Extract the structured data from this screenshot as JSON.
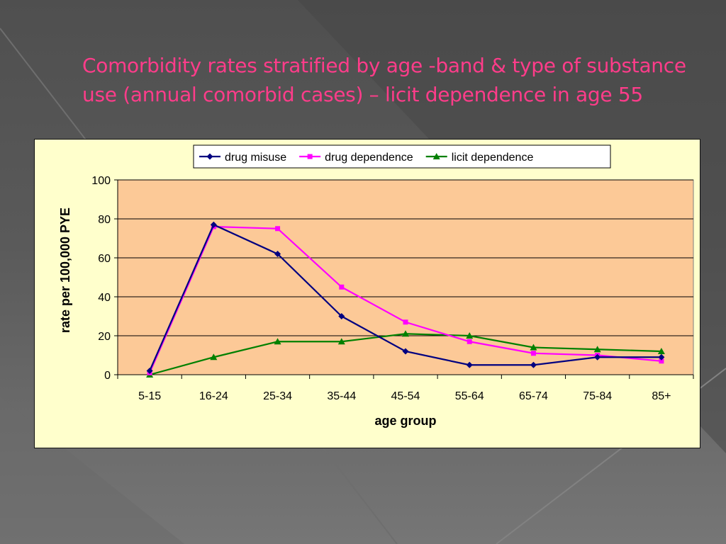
{
  "slide": {
    "title": "Comorbidity rates stratified by age -band & type of substance use (annual comorbid cases) – licit dependence in age 55"
  },
  "colors": {
    "background": "#5a5a5a",
    "title": "#ff3c8a",
    "chart_area": "#ffffcc",
    "plot_area": "#fcc997"
  },
  "chart_data": {
    "type": "line",
    "title": "",
    "xlabel": "age group",
    "ylabel": "rate per 100,000 PYE",
    "categories": [
      "5-15",
      "16-24",
      "25-34",
      "35-44",
      "45-54",
      "55-64",
      "65-74",
      "75-84",
      "85+"
    ],
    "ylim": [
      0,
      100
    ],
    "yticks": [
      0,
      20,
      40,
      60,
      80,
      100
    ],
    "grid": true,
    "legend_position": "top",
    "series": [
      {
        "name": "drug misuse",
        "color": "#000080",
        "marker": "diamond",
        "values": [
          2,
          77,
          62,
          30,
          12,
          5,
          5,
          9,
          9
        ]
      },
      {
        "name": "drug dependence",
        "color": "#ff00ff",
        "marker": "square",
        "values": [
          1,
          76,
          75,
          45,
          27,
          17,
          11,
          10,
          7
        ]
      },
      {
        "name": "licit dependence",
        "color": "#008000",
        "marker": "triangle",
        "values": [
          0,
          9,
          17,
          17,
          21,
          20,
          14,
          13,
          12
        ]
      }
    ]
  }
}
